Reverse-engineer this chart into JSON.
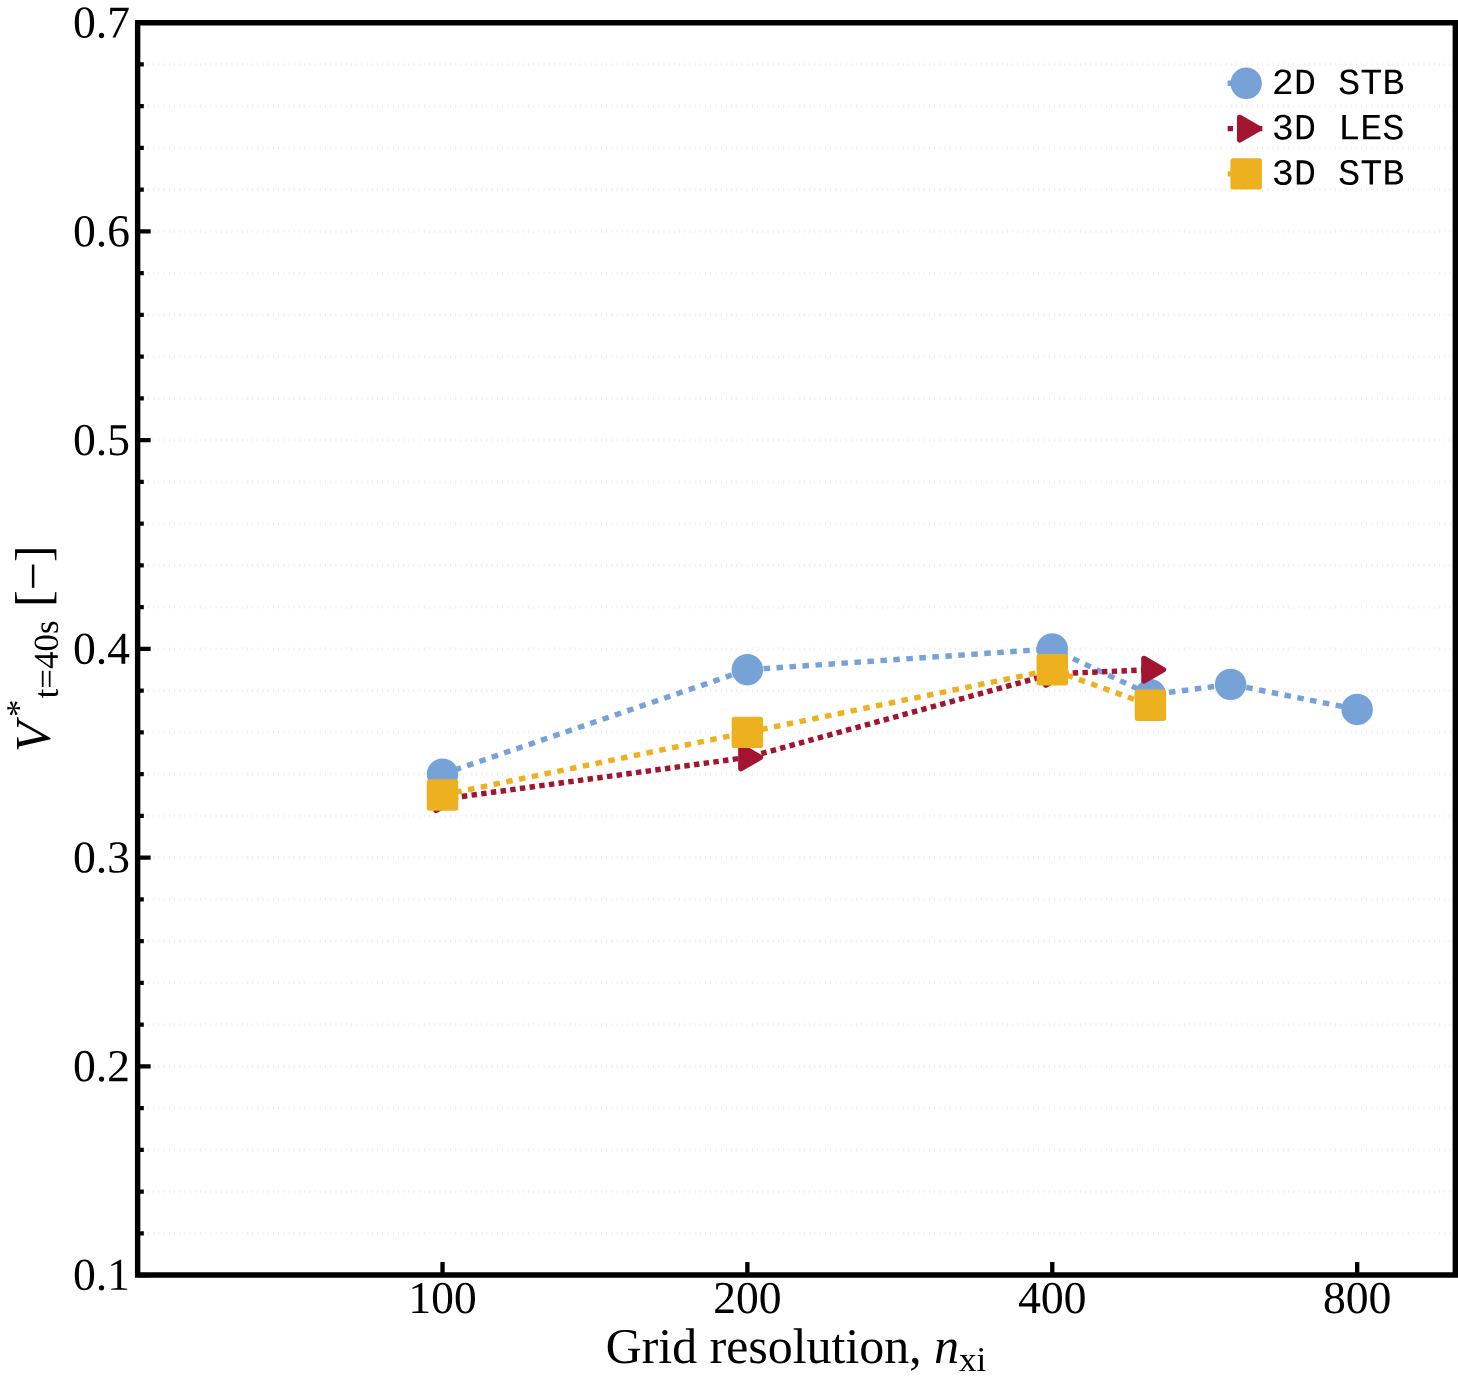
{
  "chart_data": {
    "type": "line",
    "xlabel": "Grid resolution, *n*$_{xi}$",
    "ylabel": "*V*$^{*}$$_{t=40s}$ [−]",
    "log": "x",
    "xlim": [
      50,
      1000
    ],
    "xticks": [
      100,
      200,
      400,
      800
    ],
    "ylim": [
      0.1,
      0.7
    ],
    "yticks": [
      0.1,
      0.2,
      0.3,
      0.4,
      0.5,
      0.6,
      0.7
    ],
    "grid": "y",
    "legend": "top right",
    "series": [
      {
        "name": "2D STB",
        "color": "#77a2d8",
        "marker": "circle",
        "line_style": "dashed",
        "x": [
          100,
          200,
          400,
          500,
          600,
          800
        ],
        "values": [
          0.34,
          0.39,
          0.4,
          0.378,
          0.383,
          0.371
        ]
      },
      {
        "name": "3D LES",
        "color": "#a2142f",
        "marker": "triangle",
        "line_style": "dotted",
        "x": [
          100,
          200,
          400,
          500
        ],
        "values": [
          0.328,
          0.348,
          0.388,
          0.39
        ]
      },
      {
        "name": "3D STB",
        "color": "#edb120",
        "marker": "square",
        "line_style": "dashed",
        "x": [
          100,
          200,
          400,
          500
        ],
        "values": [
          0.33,
          0.36,
          0.39,
          0.373
        ]
      }
    ]
  }
}
